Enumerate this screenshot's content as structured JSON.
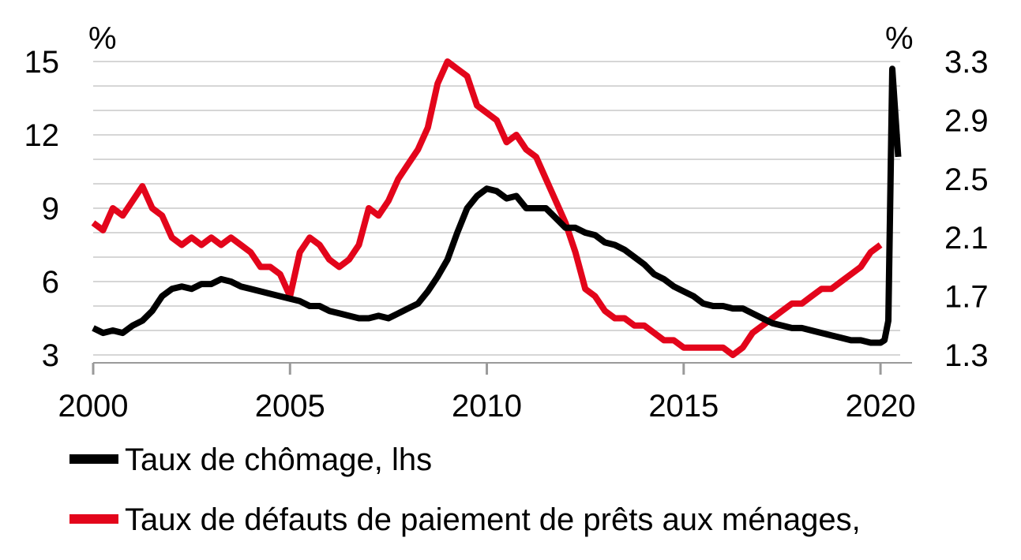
{
  "chart_data": {
    "type": "line",
    "left_axis": {
      "unit": "%",
      "ylim": [
        3,
        15
      ],
      "ticks": [
        "3",
        "6",
        "9",
        "12",
        "15"
      ]
    },
    "right_axis": {
      "unit": "%",
      "ylim": [
        1.3,
        3.3
      ],
      "ticks": [
        "1.3",
        "1.7",
        "2.1",
        "2.5",
        "2.9",
        "3.3"
      ]
    },
    "x_axis": {
      "xlim": [
        2000,
        2020.5
      ],
      "ticks": [
        "2000",
        "2005",
        "2010",
        "2015",
        "2020"
      ]
    },
    "grid": true,
    "legend_position": "bottom",
    "series": [
      {
        "name": "Taux de chômage, lhs",
        "axis": "left",
        "color": "#000000",
        "x": [
          2000.0,
          2000.25,
          2000.5,
          2000.75,
          2001.0,
          2001.25,
          2001.5,
          2001.75,
          2002.0,
          2002.25,
          2002.5,
          2002.75,
          2003.0,
          2003.25,
          2003.5,
          2003.75,
          2004.0,
          2004.25,
          2004.5,
          2004.75,
          2005.0,
          2005.25,
          2005.5,
          2005.75,
          2006.0,
          2006.25,
          2006.5,
          2006.75,
          2007.0,
          2007.25,
          2007.5,
          2007.75,
          2008.0,
          2008.25,
          2008.5,
          2008.75,
          2009.0,
          2009.25,
          2009.5,
          2009.75,
          2010.0,
          2010.25,
          2010.5,
          2010.75,
          2011.0,
          2011.25,
          2011.5,
          2011.75,
          2012.0,
          2012.25,
          2012.5,
          2012.75,
          2013.0,
          2013.25,
          2013.5,
          2013.75,
          2014.0,
          2014.25,
          2014.5,
          2014.75,
          2015.0,
          2015.25,
          2015.5,
          2015.75,
          2016.0,
          2016.25,
          2016.5,
          2016.75,
          2017.0,
          2017.25,
          2017.5,
          2017.75,
          2018.0,
          2018.25,
          2018.5,
          2018.75,
          2019.0,
          2019.25,
          2019.5,
          2019.75,
          2020.0,
          2020.1,
          2020.2,
          2020.3,
          2020.45
        ],
        "values": [
          4.1,
          3.9,
          4.0,
          3.9,
          4.2,
          4.4,
          4.8,
          5.4,
          5.7,
          5.8,
          5.7,
          5.9,
          5.9,
          6.1,
          6.0,
          5.8,
          5.7,
          5.6,
          5.5,
          5.4,
          5.3,
          5.2,
          5.0,
          5.0,
          4.8,
          4.7,
          4.6,
          4.5,
          4.5,
          4.6,
          4.5,
          4.7,
          4.9,
          5.1,
          5.6,
          6.2,
          6.9,
          8.0,
          9.0,
          9.5,
          9.8,
          9.7,
          9.4,
          9.5,
          9.0,
          9.0,
          9.0,
          8.6,
          8.2,
          8.2,
          8.0,
          7.9,
          7.6,
          7.5,
          7.3,
          7.0,
          6.7,
          6.3,
          6.1,
          5.8,
          5.6,
          5.4,
          5.1,
          5.0,
          5.0,
          4.9,
          4.9,
          4.7,
          4.5,
          4.3,
          4.2,
          4.1,
          4.1,
          4.0,
          3.9,
          3.8,
          3.7,
          3.6,
          3.6,
          3.5,
          3.5,
          3.6,
          4.4,
          14.7,
          11.1
        ]
      },
      {
        "name": "Taux de défauts de paiement de prêts aux ménages,",
        "axis": "right",
        "color": "#e3051b",
        "x": [
          2000.0,
          2000.25,
          2000.5,
          2000.75,
          2001.0,
          2001.25,
          2001.5,
          2001.75,
          2002.0,
          2002.25,
          2002.5,
          2002.75,
          2003.0,
          2003.25,
          2003.5,
          2003.75,
          2004.0,
          2004.25,
          2004.5,
          2004.75,
          2005.0,
          2005.25,
          2005.5,
          2005.75,
          2006.0,
          2006.25,
          2006.5,
          2006.75,
          2007.0,
          2007.25,
          2007.5,
          2007.75,
          2008.0,
          2008.25,
          2008.5,
          2008.75,
          2009.0,
          2009.25,
          2009.5,
          2009.75,
          2010.0,
          2010.25,
          2010.5,
          2010.75,
          2011.0,
          2011.25,
          2011.5,
          2011.75,
          2012.0,
          2012.25,
          2012.5,
          2012.75,
          2013.0,
          2013.25,
          2013.5,
          2013.75,
          2014.0,
          2014.25,
          2014.5,
          2014.75,
          2015.0,
          2015.25,
          2015.5,
          2015.75,
          2016.0,
          2016.25,
          2016.5,
          2016.75,
          2017.0,
          2017.25,
          2017.5,
          2017.75,
          2018.0,
          2018.25,
          2018.5,
          2018.75,
          2019.0,
          2019.25,
          2019.5,
          2019.75,
          2020.0
        ],
        "values": [
          2.2,
          2.15,
          2.3,
          2.25,
          2.35,
          2.45,
          2.3,
          2.25,
          2.1,
          2.05,
          2.1,
          2.05,
          2.1,
          2.05,
          2.1,
          2.05,
          2.0,
          1.9,
          1.9,
          1.85,
          1.7,
          2.0,
          2.1,
          2.05,
          1.95,
          1.9,
          1.95,
          2.05,
          2.3,
          2.25,
          2.35,
          2.5,
          2.6,
          2.7,
          2.85,
          3.15,
          3.3,
          3.25,
          3.2,
          3.0,
          2.95,
          2.9,
          2.75,
          2.8,
          2.7,
          2.65,
          2.5,
          2.35,
          2.2,
          2.0,
          1.75,
          1.7,
          1.6,
          1.55,
          1.55,
          1.5,
          1.5,
          1.45,
          1.4,
          1.4,
          1.35,
          1.35,
          1.35,
          1.35,
          1.35,
          1.3,
          1.35,
          1.45,
          1.5,
          1.55,
          1.6,
          1.65,
          1.65,
          1.7,
          1.75,
          1.75,
          1.8,
          1.85,
          1.9,
          2.0,
          2.05
        ]
      }
    ]
  }
}
